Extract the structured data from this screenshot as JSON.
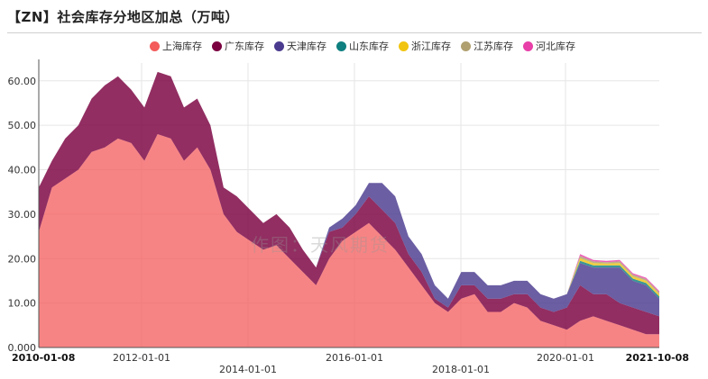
{
  "title": "【ZN】社会库存分地区加总（万吨）",
  "watermark": "作图：天风期货",
  "legend": [
    {
      "name": "上海库存",
      "color": "#f45b5b"
    },
    {
      "name": "广东库存",
      "color": "#7a0040"
    },
    {
      "name": "天津库存",
      "color": "#4b3b8f"
    },
    {
      "name": "山东库存",
      "color": "#0f7f7f"
    },
    {
      "name": "浙江库存",
      "color": "#f1c40f"
    },
    {
      "name": "江苏库存",
      "color": "#b0a070"
    },
    {
      "name": "河北库存",
      "color": "#e83fa8"
    }
  ],
  "chart_data": {
    "type": "area",
    "stacked": true,
    "title": "【ZN】社会库存分地区加总（万吨）",
    "xlabel": "",
    "ylabel": "",
    "ylim": [
      0,
      64
    ],
    "y_ticks": [
      "0.000",
      "10.00",
      "20.00",
      "30.00",
      "40.00",
      "50.00",
      "60.00"
    ],
    "x_start_label": "2010-01-08",
    "x_end_label": "2021-10-08",
    "x_tick_labels": [
      "2012-01-01",
      "2014-01-01",
      "2016-01-01",
      "2018-01-01",
      "2020-01-01"
    ],
    "legend_position": "top-right",
    "grid": true,
    "x": [
      "2010-01",
      "2010-04",
      "2010-07",
      "2010-10",
      "2011-01",
      "2011-04",
      "2011-07",
      "2011-10",
      "2012-01",
      "2012-04",
      "2012-07",
      "2012-10",
      "2013-01",
      "2013-04",
      "2013-07",
      "2013-10",
      "2014-01",
      "2014-04",
      "2014-07",
      "2014-10",
      "2015-01",
      "2015-04",
      "2015-07",
      "2015-10",
      "2016-01",
      "2016-04",
      "2016-07",
      "2016-10",
      "2017-01",
      "2017-04",
      "2017-07",
      "2017-10",
      "2018-01",
      "2018-04",
      "2018-07",
      "2018-10",
      "2019-01",
      "2019-04",
      "2019-07",
      "2019-10",
      "2020-01",
      "2020-04",
      "2020-07",
      "2020-10",
      "2021-01",
      "2021-04",
      "2021-07",
      "2021-10"
    ],
    "series": [
      {
        "name": "上海库存",
        "values": [
          26,
          36,
          38,
          40,
          44,
          45,
          47,
          46,
          42,
          48,
          47,
          42,
          45,
          40,
          30,
          26,
          24,
          22,
          23,
          20,
          17,
          14,
          20,
          24,
          26,
          28,
          25,
          22,
          18,
          14,
          10,
          8,
          11,
          12,
          8,
          8,
          10,
          9,
          6,
          5,
          4,
          6,
          7,
          6,
          5,
          4,
          3,
          3
        ]
      },
      {
        "name": "广东库存",
        "values": [
          10,
          6,
          9,
          10,
          12,
          14,
          14,
          12,
          12,
          14,
          14,
          12,
          11,
          10,
          6,
          8,
          7,
          6,
          7,
          7,
          5,
          4,
          6,
          3,
          4,
          6,
          6,
          6,
          3,
          3,
          1,
          1,
          3,
          2,
          3,
          3,
          2,
          3,
          3,
          3,
          5,
          8,
          5,
          6,
          5,
          5,
          5,
          4
        ]
      },
      {
        "name": "天津库存",
        "values": [
          0,
          0,
          0,
          0,
          0,
          0,
          0,
          0,
          0,
          0,
          0,
          0,
          0,
          0,
          0,
          0,
          0,
          0,
          0,
          0,
          0,
          0,
          1,
          2,
          2,
          3,
          6,
          6,
          4,
          4,
          3,
          2,
          3,
          3,
          3,
          3,
          3,
          3,
          3,
          3,
          3,
          5,
          6,
          6,
          8,
          6,
          6,
          4
        ]
      },
      {
        "name": "山东库存",
        "values": [
          0,
          0,
          0,
          0,
          0,
          0,
          0,
          0,
          0,
          0,
          0,
          0,
          0,
          0,
          0,
          0,
          0,
          0,
          0,
          0,
          0,
          0,
          0,
          0,
          0,
          0,
          0,
          0,
          0,
          0,
          0,
          0,
          0,
          0,
          0,
          0,
          0,
          0,
          0,
          0,
          0,
          0.5,
          0.5,
          0.5,
          0.5,
          0.5,
          0.5,
          0.5
        ]
      },
      {
        "name": "浙江库存",
        "values": [
          0,
          0,
          0,
          0,
          0,
          0,
          0,
          0,
          0,
          0,
          0,
          0,
          0,
          0,
          0,
          0,
          0,
          0,
          0,
          0,
          0,
          0,
          0,
          0,
          0,
          0,
          0,
          0,
          0,
          0,
          0,
          0,
          0,
          0,
          0,
          0,
          0,
          0,
          0,
          0,
          0,
          0.6,
          0.5,
          0.4,
          0.5,
          0.5,
          0.5,
          0.5
        ]
      },
      {
        "name": "江苏库存",
        "values": [
          0,
          0,
          0,
          0,
          0,
          0,
          0,
          0,
          0,
          0,
          0,
          0,
          0,
          0,
          0,
          0,
          0,
          0,
          0,
          0,
          0,
          0,
          0,
          0,
          0,
          0,
          0,
          0,
          0,
          0,
          0,
          0,
          0,
          0,
          0,
          0,
          0,
          0,
          0,
          0,
          0,
          0.5,
          0.4,
          0.3,
          0.4,
          0.4,
          0.4,
          0.4
        ]
      },
      {
        "name": "河北库存",
        "values": [
          0,
          0,
          0,
          0,
          0,
          0,
          0,
          0,
          0,
          0,
          0,
          0,
          0,
          0,
          0,
          0,
          0,
          0,
          0,
          0,
          0,
          0,
          0,
          0,
          0,
          0,
          0,
          0,
          0,
          0,
          0,
          0,
          0,
          0,
          0,
          0,
          0,
          0,
          0,
          0,
          0,
          0.4,
          0.3,
          0.3,
          0.3,
          0.3,
          0.3,
          0.3
        ]
      }
    ]
  }
}
